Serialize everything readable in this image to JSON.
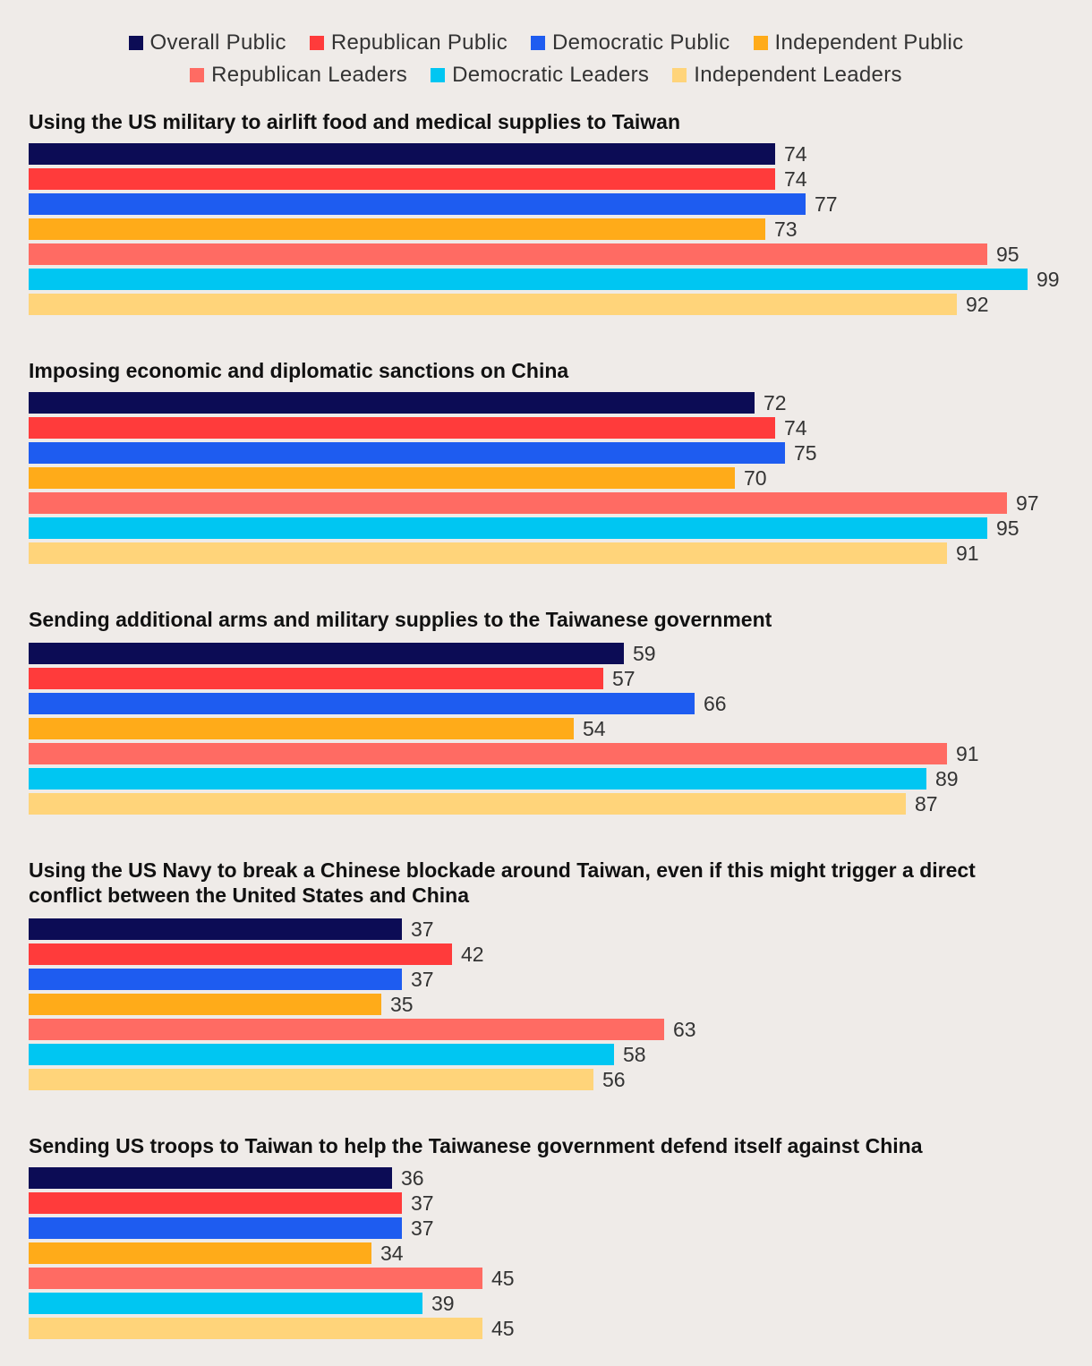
{
  "legend": {
    "row1": [
      {
        "label": "Overall Public",
        "color": "#0c0c55"
      },
      {
        "label": "Republican Public",
        "color": "#ff3b3b"
      },
      {
        "label": "Democratic Public",
        "color": "#1e5cf0"
      },
      {
        "label": "Independent Public",
        "color": "#ffab19"
      }
    ],
    "row2": [
      {
        "label": "Republican Leaders",
        "color": "#ff6b63"
      },
      {
        "label": "Democratic Leaders",
        "color": "#00c6f2"
      },
      {
        "label": "Independent Leaders",
        "color": "#ffd47a"
      }
    ]
  },
  "chart_data": {
    "type": "bar",
    "orientation": "horizontal",
    "xlim": [
      0,
      100
    ],
    "grid": false,
    "legend_position": "top-center",
    "series": [
      {
        "name": "Overall Public",
        "color": "#0c0c55"
      },
      {
        "name": "Republican Public",
        "color": "#ff3b3b"
      },
      {
        "name": "Democratic Public",
        "color": "#1e5cf0"
      },
      {
        "name": "Independent Public",
        "color": "#ffab19"
      },
      {
        "name": "Republican Leaders",
        "color": "#ff6b63"
      },
      {
        "name": "Democratic Leaders",
        "color": "#00c6f2"
      },
      {
        "name": "Independent Leaders",
        "color": "#ffd47a"
      }
    ],
    "groups": [
      {
        "title": "Using the US military to airlift food and medical supplies to Taiwan",
        "values": [
          74,
          74,
          77,
          73,
          95,
          99,
          92
        ]
      },
      {
        "title": "Imposing economic and diplomatic sanctions on China",
        "values": [
          72,
          74,
          75,
          70,
          97,
          95,
          91
        ]
      },
      {
        "title": "Sending additional arms and military supplies to the Taiwanese government",
        "values": [
          59,
          57,
          66,
          54,
          91,
          89,
          87
        ]
      },
      {
        "title": "Using the US Navy to break a Chinese blockade around Taiwan, even if this might trigger a direct conflict between the United States and China",
        "values": [
          37,
          42,
          37,
          35,
          63,
          58,
          56
        ]
      },
      {
        "title": "Sending US troops to Taiwan to help the Taiwanese government defend itself against China",
        "values": [
          36,
          37,
          37,
          34,
          45,
          39,
          45
        ]
      }
    ]
  }
}
